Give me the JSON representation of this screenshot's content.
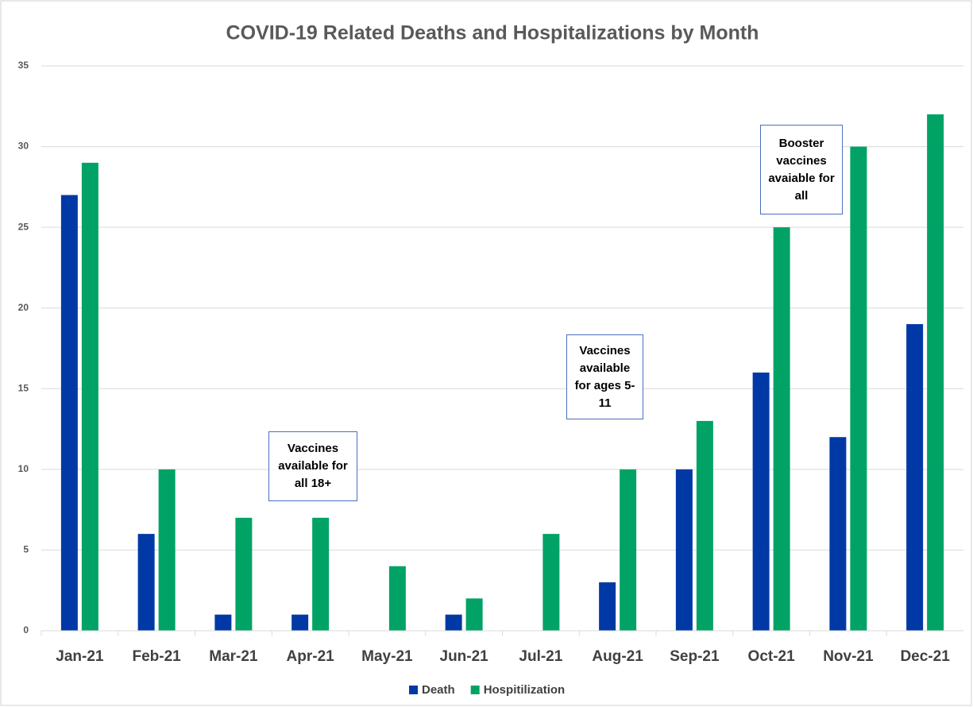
{
  "chart_data": {
    "type": "bar",
    "title": "COVID-19 Related Deaths and Hospitalizations by Month",
    "categories": [
      "Jan-21",
      "Feb-21",
      "Mar-21",
      "Apr-21",
      "May-21",
      "Jun-21",
      "Jul-21",
      "Aug-21",
      "Sep-21",
      "Oct-21",
      "Nov-21",
      "Dec-21"
    ],
    "series": [
      {
        "name": "Death",
        "color": "#0039a6",
        "values": [
          27,
          6,
          1,
          1,
          0,
          1,
          0,
          3,
          10,
          16,
          12,
          19
        ]
      },
      {
        "name": "Hospitilization",
        "color": "#00a365",
        "values": [
          29,
          10,
          7,
          7,
          4,
          2,
          6,
          10,
          13,
          25,
          30,
          32
        ]
      }
    ],
    "ylim": [
      0,
      35
    ],
    "yticks": [
      0,
      5,
      10,
      15,
      20,
      25,
      30,
      35
    ],
    "grid": true,
    "legend": "bottom",
    "annotations": [
      {
        "text": "Vaccines available for all 18+"
      },
      {
        "text": "Vaccines available for ages 5-11"
      },
      {
        "text": "Booster vaccines avaiable for all"
      }
    ]
  }
}
